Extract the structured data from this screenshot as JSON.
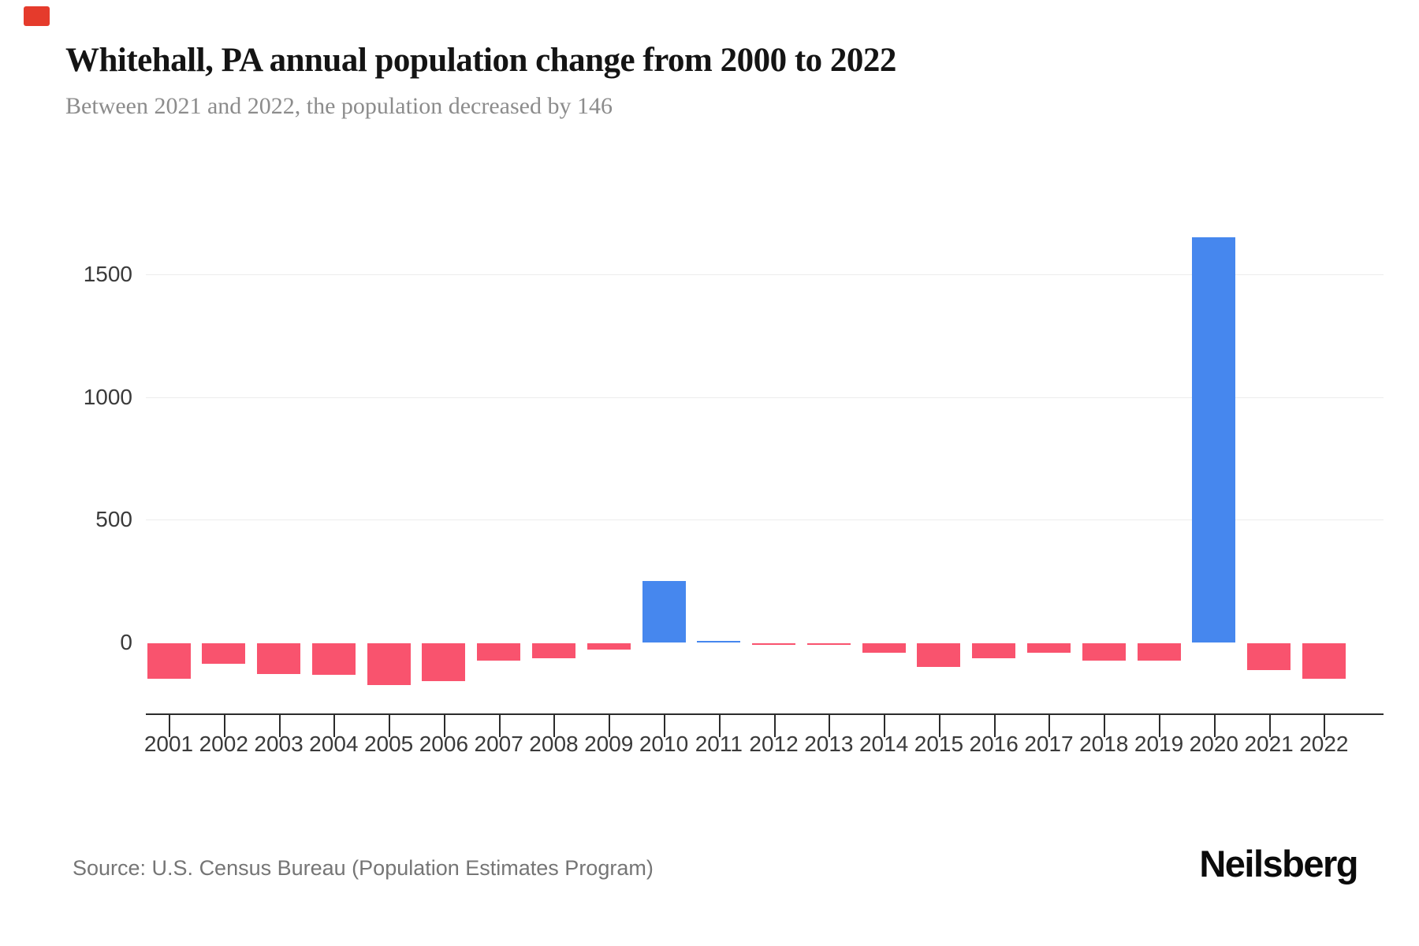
{
  "page": {
    "background": "#ffffff",
    "corner_mark_color": "#e53b2c"
  },
  "header": {
    "title": "Whitehall, PA annual population change from 2000 to 2022",
    "subtitle": "Between 2021 and 2022, the population decreased by 146"
  },
  "chart_data": {
    "type": "bar",
    "title": "Whitehall, PA annual population change from 2000 to 2022",
    "xlabel": "",
    "ylabel": "",
    "categories": [
      "2001",
      "2002",
      "2003",
      "2004",
      "2005",
      "2006",
      "2007",
      "2008",
      "2009",
      "2010",
      "2011",
      "2012",
      "2013",
      "2014",
      "2015",
      "2016",
      "2017",
      "2018",
      "2019",
      "2020",
      "2021",
      "2022"
    ],
    "values": [
      -145,
      -85,
      -125,
      -130,
      -170,
      -155,
      -70,
      -60,
      -25,
      250,
      5,
      -1,
      -5,
      -40,
      -95,
      -60,
      -40,
      -70,
      -70,
      1650,
      -110,
      -146
    ],
    "yticks": [
      0,
      500,
      1000,
      1500
    ],
    "ylim": [
      -250,
      1800
    ],
    "grid": true,
    "legend": "none",
    "colors": {
      "positive": "#4687ee",
      "negative": "#f9536e"
    }
  },
  "footer": {
    "source": "Source: U.S. Census Bureau (Population Estimates Program)",
    "brand": "Neilsberg"
  }
}
